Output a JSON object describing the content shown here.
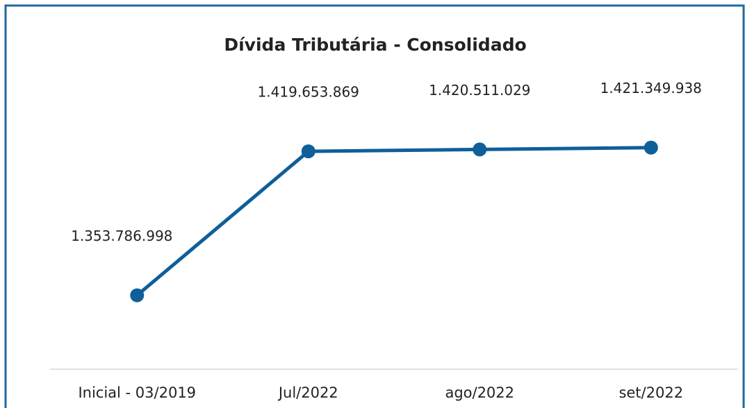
{
  "chart_data": {
    "type": "line",
    "title": "Dívida Tributária - Consolidado",
    "categories": [
      "Inicial  - 03/2019",
      "Jul/2022",
      "ago/2022",
      "set/2022"
    ],
    "series": [
      {
        "name": "Dívida Tributária",
        "color": "#0e5f9a",
        "values": [
          1353786998,
          1419653869,
          1420511029,
          1421349938
        ],
        "value_labels": [
          "1.353.786.998",
          "1.419.653.869",
          "1.420.511.029",
          "1.421.349.938"
        ]
      }
    ],
    "ylim": [
      1320000000,
      1440000000
    ]
  }
}
